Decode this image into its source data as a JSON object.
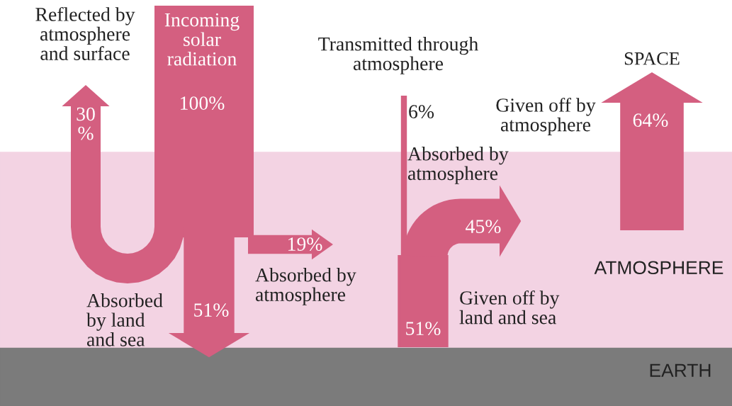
{
  "chart_data": {
    "type": "other",
    "categories": [
      "Incoming\nsolar\nradiation",
      "Reflected by\natmosphere\nand surface",
      "Absorbed by\natmosphere",
      "Absorbed\nby land\nand sea",
      "Given off by\nland and sea",
      "Transmitted through\natmosphere",
      "Absorbed by\natmosphere",
      "Given off by\natmosphere"
    ],
    "values": [
      100,
      30,
      19,
      51,
      51,
      6,
      45,
      64
    ],
    "value_labels": [
      "100%",
      "30\n%",
      "19%",
      "51%",
      "51%",
      "6%",
      "45%",
      "64%"
    ],
    "colors": [
      "#d45f80",
      "#d45f80",
      "#d45f80",
      "#d45f80",
      "#d45f80",
      "#d45f80",
      "#d45f80",
      "#d45f80"
    ],
    "annotations": [
      "SPACE",
      "ATMOSPHERE",
      "EARTH"
    ]
  }
}
